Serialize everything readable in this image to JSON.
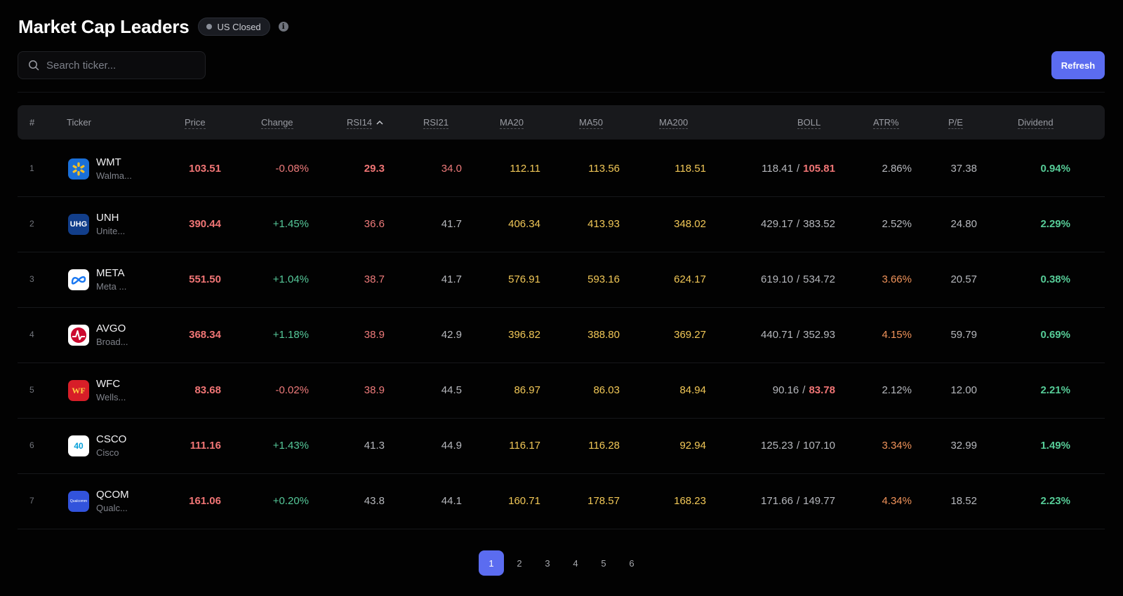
{
  "header": {
    "title": "Market Cap Leaders",
    "status_badge": "US Closed"
  },
  "search": {
    "placeholder": "Search ticker..."
  },
  "toolbar": {
    "refresh_label": "Refresh"
  },
  "columns": {
    "rank": "#",
    "ticker": "Ticker",
    "price": "Price",
    "change": "Change",
    "rsi14": "RSI14",
    "rsi21": "RSI21",
    "ma20": "MA20",
    "ma50": "MA50",
    "ma200": "MA200",
    "boll": "BOLL",
    "atr": "ATR%",
    "pe": "P/E",
    "dividend": "Dividend"
  },
  "rows": [
    {
      "rank": "1",
      "ticker": "WMT",
      "name": "Walma...",
      "logo": "walmart-spark-icon",
      "price": "103.51",
      "change": "-0.08%",
      "rsi14": "29.3",
      "rsi21": "34.0",
      "ma20": "112.11",
      "ma50": "113.56",
      "ma200": "118.51",
      "boll_upper": "118.41",
      "boll_lower": "105.81",
      "atr": "2.86%",
      "pe": "37.38",
      "dividend": "0.94%"
    },
    {
      "rank": "2",
      "ticker": "UNH",
      "name": "Unite...",
      "logo": "UHG",
      "price": "390.44",
      "change": "+1.45%",
      "rsi14": "36.6",
      "rsi21": "41.7",
      "ma20": "406.34",
      "ma50": "413.93",
      "ma200": "348.02",
      "boll_upper": "429.17",
      "boll_lower": "383.52",
      "atr": "2.52%",
      "pe": "24.80",
      "dividend": "2.29%"
    },
    {
      "rank": "3",
      "ticker": "META",
      "name": "Meta ...",
      "logo": "meta-infinity-icon",
      "price": "551.50",
      "change": "+1.04%",
      "rsi14": "38.7",
      "rsi21": "41.7",
      "ma20": "576.91",
      "ma50": "593.16",
      "ma200": "624.17",
      "boll_upper": "619.10",
      "boll_lower": "534.72",
      "atr": "3.66%",
      "pe": "20.57",
      "dividend": "0.38%"
    },
    {
      "rank": "4",
      "ticker": "AVGO",
      "name": "Broad...",
      "logo": "broadcom-pulse-icon",
      "price": "368.34",
      "change": "+1.18%",
      "rsi14": "38.9",
      "rsi21": "42.9",
      "ma20": "396.82",
      "ma50": "388.80",
      "ma200": "369.27",
      "boll_upper": "440.71",
      "boll_lower": "352.93",
      "atr": "4.15%",
      "pe": "59.79",
      "dividend": "0.69%"
    },
    {
      "rank": "5",
      "ticker": "WFC",
      "name": "Wells...",
      "logo": "WF",
      "price": "83.68",
      "change": "-0.02%",
      "rsi14": "38.9",
      "rsi21": "44.5",
      "ma20": "86.97",
      "ma50": "86.03",
      "ma200": "84.94",
      "boll_upper": "90.16",
      "boll_lower": "83.78",
      "atr": "2.12%",
      "pe": "12.00",
      "dividend": "2.21%"
    },
    {
      "rank": "6",
      "ticker": "CSCO",
      "name": "Cisco",
      "logo": "40",
      "price": "111.16",
      "change": "+1.43%",
      "rsi14": "41.3",
      "rsi21": "44.9",
      "ma20": "116.17",
      "ma50": "116.28",
      "ma200": "92.94",
      "boll_upper": "125.23",
      "boll_lower": "107.10",
      "atr": "3.34%",
      "pe": "32.99",
      "dividend": "1.49%"
    },
    {
      "rank": "7",
      "ticker": "QCOM",
      "name": "Qualc...",
      "logo": "Qualcomm",
      "price": "161.06",
      "change": "+0.20%",
      "rsi14": "43.8",
      "rsi21": "44.1",
      "ma20": "160.71",
      "ma50": "178.57",
      "ma200": "168.23",
      "boll_upper": "171.66",
      "boll_lower": "149.77",
      "atr": "4.34%",
      "pe": "18.52",
      "dividend": "2.23%"
    }
  ],
  "boll_separator": "/",
  "pagination": {
    "pages": [
      "1",
      "2",
      "3",
      "4",
      "5",
      "6"
    ],
    "current": "1"
  },
  "colors": {
    "accent": "#5b6cf0",
    "negative": "#ef7b7b",
    "positive": "#56c99a",
    "moving_average": "#f2c857",
    "atr_high": "#f0935a"
  }
}
